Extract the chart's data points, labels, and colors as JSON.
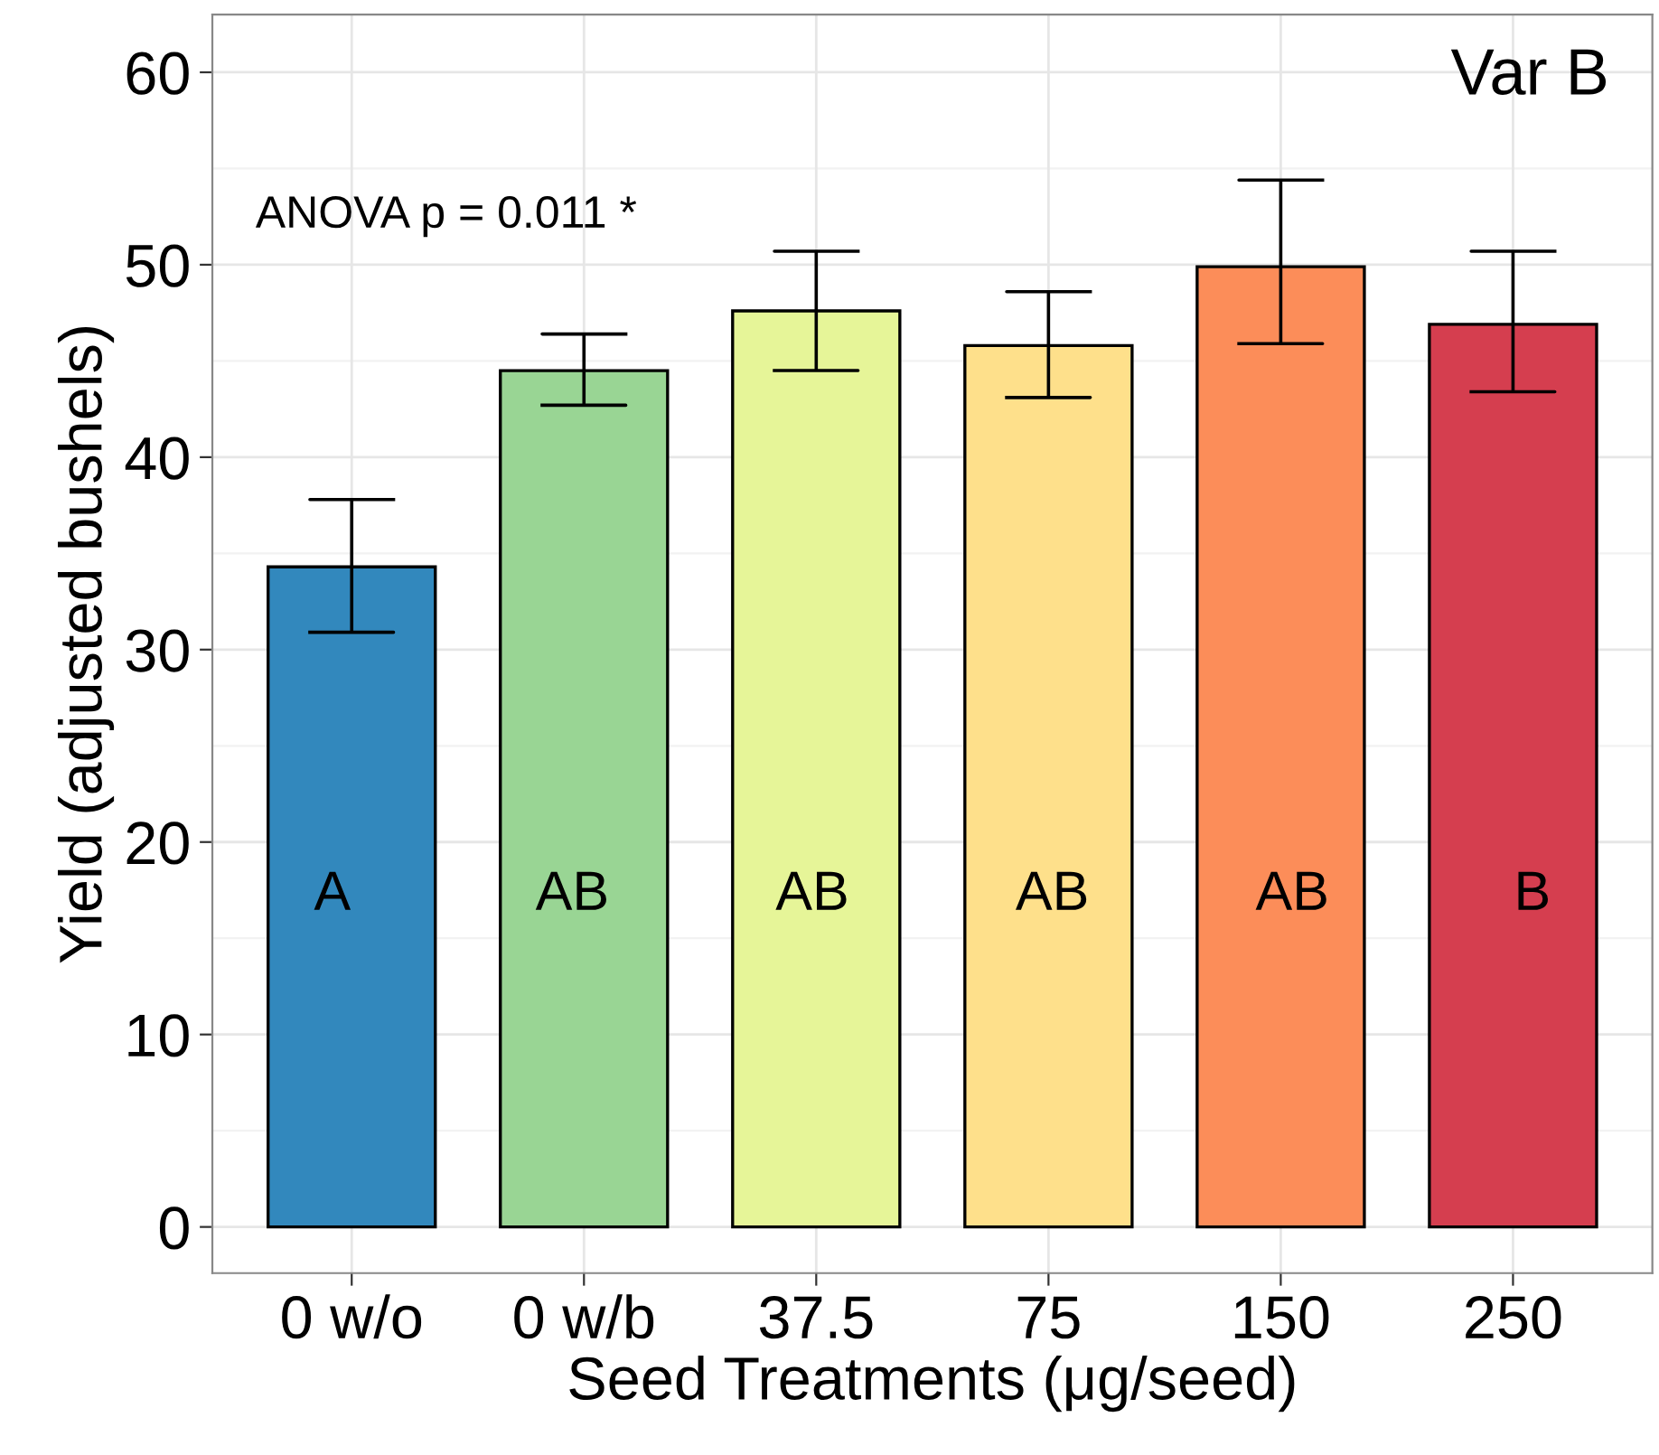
{
  "chart_data": {
    "type": "bar",
    "xlabel": "Seed Treatments (μg/seed)",
    "ylabel": "Yield (adjusted bushels)",
    "categories": [
      "0 w/o",
      "0 w/b",
      "37.5",
      "75",
      "150",
      "250"
    ],
    "values": [
      34.3,
      44.5,
      47.6,
      45.8,
      49.9,
      46.9
    ],
    "colors": [
      "#3288bd",
      "#99d594",
      "#e6f598",
      "#fee08b",
      "#fc8d59",
      "#d53e4f"
    ],
    "errors": [
      [
        30.9,
        37.8
      ],
      [
        42.7,
        46.4
      ],
      [
        44.5,
        50.7
      ],
      [
        43.1,
        48.6
      ],
      [
        45.9,
        54.4
      ],
      [
        43.4,
        50.7
      ]
    ],
    "ylim": [
      -2.4,
      63
    ],
    "yticks": [
      0,
      10,
      20,
      30,
      40,
      50,
      60
    ],
    "grid": true,
    "annotations": [
      "Var B",
      "ANOVA p = 0.011 *",
      "A",
      "AB",
      "AB",
      "AB",
      "AB",
      "B"
    ]
  }
}
